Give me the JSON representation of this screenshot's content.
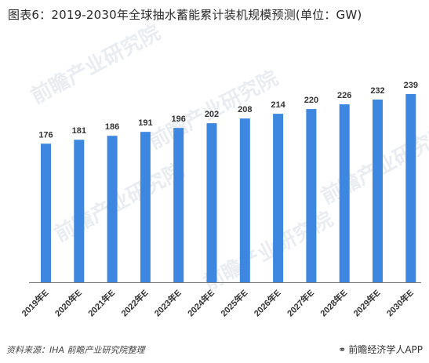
{
  "title": "图表6：2019-2030年全球抽水蓄能累计装机规模预测(单位：GW)",
  "source": "资料来源：IHA 前瞻产业研究院整理",
  "brand": "前瞻经济学人APP",
  "brand_icon": "wechat-icon",
  "watermark_text": "前瞻产业研究院",
  "colors": {
    "bar": "#3d87e0",
    "axis": "#7a7a7a",
    "label": "#333333"
  },
  "chart_data": {
    "type": "bar",
    "categories": [
      "2019年E",
      "2020年E",
      "2021年E",
      "2022年E",
      "2023年E",
      "2024年E",
      "2025年E",
      "2026年E",
      "2027年E",
      "2028年E",
      "2029年E",
      "2030年E"
    ],
    "values": [
      176,
      181,
      186,
      191,
      196,
      202,
      208,
      214,
      220,
      226,
      232,
      239
    ],
    "title": "图表6：2019-2030年全球抽水蓄能累计装机规模预测(单位：GW)",
    "xlabel": "",
    "ylabel": "",
    "grid": false,
    "legend": "none"
  }
}
